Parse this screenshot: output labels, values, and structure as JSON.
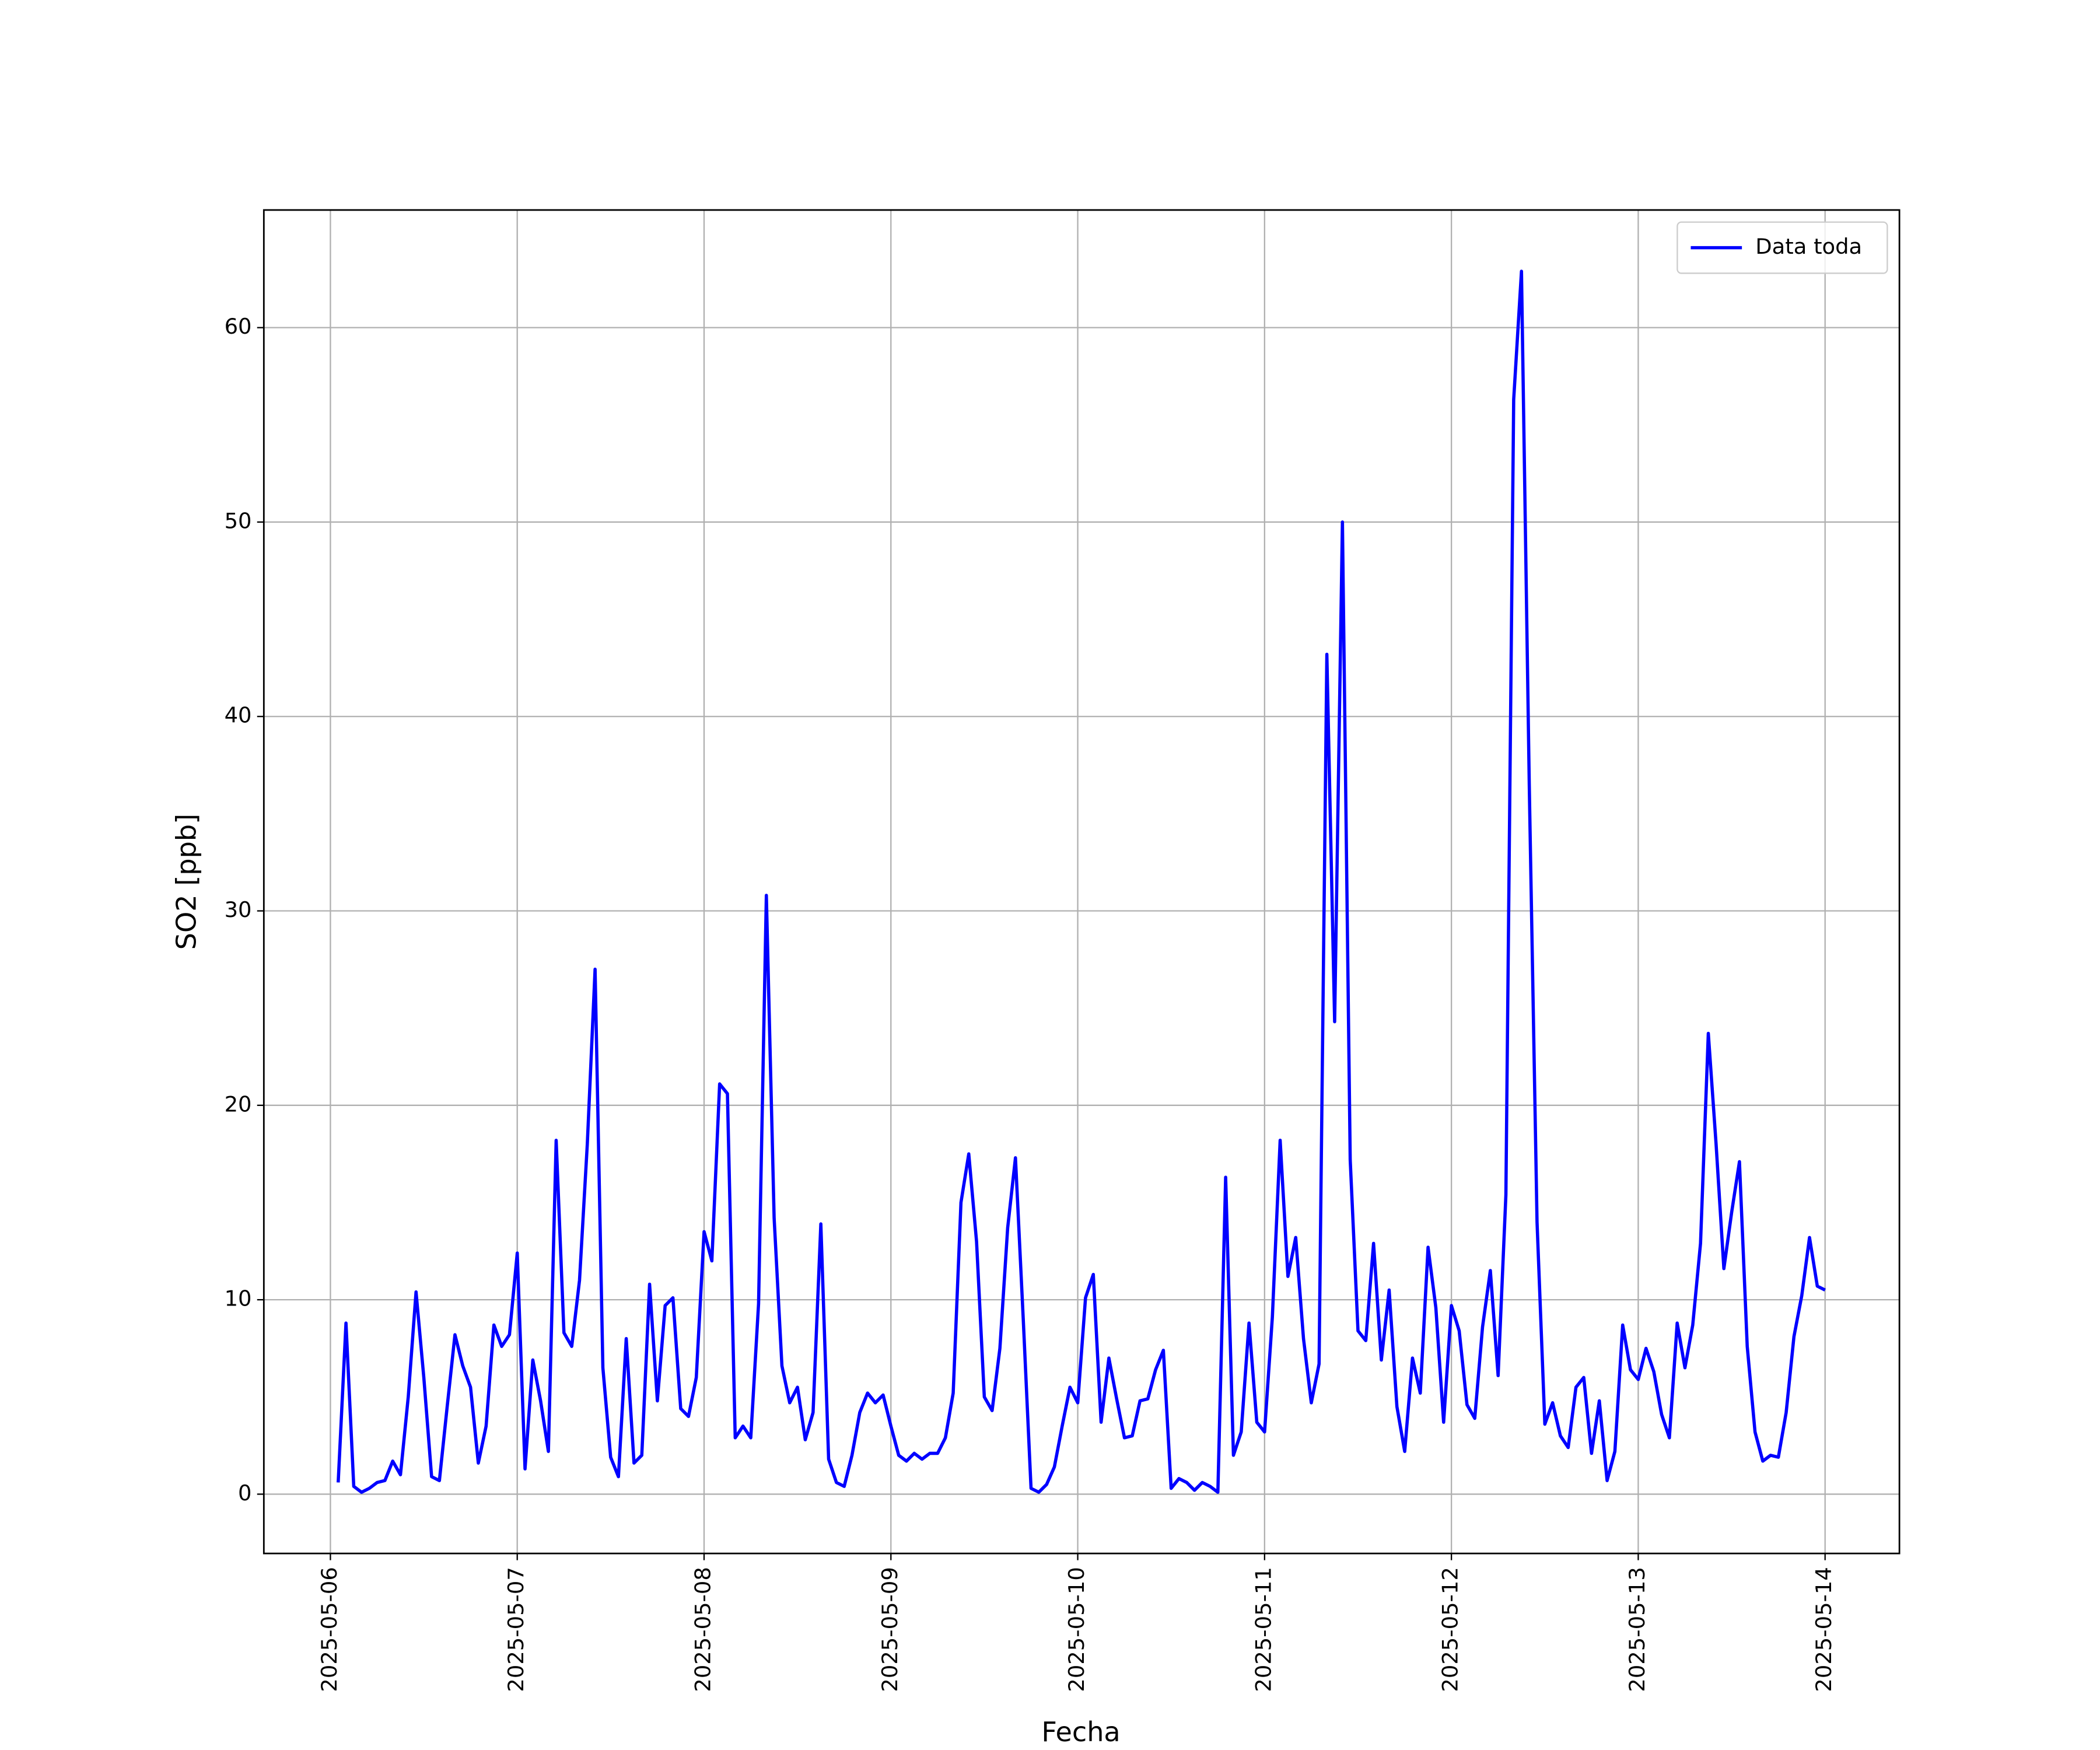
{
  "chart_data": {
    "type": "line",
    "xlabel": "Fecha",
    "ylabel": "SO2 [ppb]",
    "xlim": [
      "2025-05-05 15:27",
      "2025-05-14 09:33"
    ],
    "xticks": [
      "2025-05-06",
      "2025-05-07",
      "2025-05-08",
      "2025-05-09",
      "2025-05-10",
      "2025-05-11",
      "2025-05-12",
      "2025-05-13",
      "2025-05-14"
    ],
    "ylim": [
      -3.05,
      66.05
    ],
    "yticks": [
      0,
      10,
      20,
      30,
      40,
      50,
      60
    ],
    "grid": true,
    "legend": "upper right",
    "x": [
      "2025-05-06 01:00",
      "2025-05-06 02:00",
      "2025-05-06 03:00",
      "2025-05-06 04:00",
      "2025-05-06 05:00",
      "2025-05-06 06:00",
      "2025-05-06 07:00",
      "2025-05-06 08:00",
      "2025-05-06 09:00",
      "2025-05-06 10:00",
      "2025-05-06 11:00",
      "2025-05-06 12:00",
      "2025-05-06 13:00",
      "2025-05-06 14:00",
      "2025-05-06 15:00",
      "2025-05-06 16:00",
      "2025-05-06 17:00",
      "2025-05-06 18:00",
      "2025-05-06 19:00",
      "2025-05-06 20:00",
      "2025-05-06 21:00",
      "2025-05-06 22:00",
      "2025-05-06 23:00",
      "2025-05-07 00:00",
      "2025-05-07 01:00",
      "2025-05-07 02:00",
      "2025-05-07 03:00",
      "2025-05-07 04:00",
      "2025-05-07 05:00",
      "2025-05-07 06:00",
      "2025-05-07 07:00",
      "2025-05-07 08:00",
      "2025-05-07 09:00",
      "2025-05-07 10:00",
      "2025-05-07 11:00",
      "2025-05-07 12:00",
      "2025-05-07 13:00",
      "2025-05-07 14:00",
      "2025-05-07 15:00",
      "2025-05-07 16:00",
      "2025-05-07 17:00",
      "2025-05-07 18:00",
      "2025-05-07 19:00",
      "2025-05-07 20:00",
      "2025-05-07 21:00",
      "2025-05-07 22:00",
      "2025-05-07 23:00",
      "2025-05-08 00:00",
      "2025-05-08 01:00",
      "2025-05-08 02:00",
      "2025-05-08 03:00",
      "2025-05-08 04:00",
      "2025-05-08 05:00",
      "2025-05-08 06:00",
      "2025-05-08 07:00",
      "2025-05-08 08:00",
      "2025-05-08 09:00",
      "2025-05-08 10:00",
      "2025-05-08 11:00",
      "2025-05-08 12:00",
      "2025-05-08 13:00",
      "2025-05-08 14:00",
      "2025-05-08 15:00",
      "2025-05-08 16:00",
      "2025-05-08 17:00",
      "2025-05-08 18:00",
      "2025-05-08 19:00",
      "2025-05-08 20:00",
      "2025-05-08 21:00",
      "2025-05-08 22:00",
      "2025-05-08 23:00",
      "2025-05-09 00:00",
      "2025-05-09 01:00",
      "2025-05-09 02:00",
      "2025-05-09 03:00",
      "2025-05-09 04:00",
      "2025-05-09 05:00",
      "2025-05-09 06:00",
      "2025-05-09 07:00",
      "2025-05-09 08:00",
      "2025-05-09 09:00",
      "2025-05-09 10:00",
      "2025-05-09 11:00",
      "2025-05-09 12:00",
      "2025-05-09 13:00",
      "2025-05-09 14:00",
      "2025-05-09 15:00",
      "2025-05-09 16:00",
      "2025-05-09 17:00",
      "2025-05-09 18:00",
      "2025-05-09 19:00",
      "2025-05-09 20:00",
      "2025-05-09 21:00",
      "2025-05-09 22:00",
      "2025-05-09 23:00",
      "2025-05-10 00:00",
      "2025-05-10 01:00",
      "2025-05-10 02:00",
      "2025-05-10 03:00",
      "2025-05-10 04:00",
      "2025-05-10 05:00",
      "2025-05-10 06:00",
      "2025-05-10 07:00",
      "2025-05-10 08:00",
      "2025-05-10 09:00",
      "2025-05-10 10:00",
      "2025-05-10 11:00",
      "2025-05-10 12:00",
      "2025-05-10 13:00",
      "2025-05-10 14:00",
      "2025-05-10 15:00",
      "2025-05-10 16:00",
      "2025-05-10 17:00",
      "2025-05-10 18:00",
      "2025-05-10 19:00",
      "2025-05-10 20:00",
      "2025-05-10 21:00",
      "2025-05-10 22:00",
      "2025-05-10 23:00",
      "2025-05-11 00:00",
      "2025-05-11 01:00",
      "2025-05-11 02:00",
      "2025-05-11 03:00",
      "2025-05-11 04:00",
      "2025-05-11 05:00",
      "2025-05-11 06:00",
      "2025-05-11 07:00",
      "2025-05-11 08:00",
      "2025-05-11 09:00",
      "2025-05-11 10:00",
      "2025-05-11 11:00",
      "2025-05-11 12:00",
      "2025-05-11 13:00",
      "2025-05-11 14:00",
      "2025-05-11 15:00",
      "2025-05-11 16:00",
      "2025-05-11 17:00",
      "2025-05-11 18:00",
      "2025-05-11 19:00",
      "2025-05-11 20:00",
      "2025-05-11 21:00",
      "2025-05-11 22:00",
      "2025-05-11 23:00",
      "2025-05-12 00:00",
      "2025-05-12 01:00",
      "2025-05-12 02:00",
      "2025-05-12 03:00",
      "2025-05-12 04:00",
      "2025-05-12 05:00",
      "2025-05-12 06:00",
      "2025-05-12 07:00",
      "2025-05-12 08:00",
      "2025-05-12 09:00",
      "2025-05-12 10:00",
      "2025-05-12 11:00",
      "2025-05-12 12:00",
      "2025-05-12 13:00",
      "2025-05-12 14:00",
      "2025-05-12 15:00",
      "2025-05-12 16:00",
      "2025-05-12 17:00",
      "2025-05-12 18:00",
      "2025-05-12 19:00",
      "2025-05-12 20:00",
      "2025-05-12 21:00",
      "2025-05-12 22:00",
      "2025-05-12 23:00",
      "2025-05-13 00:00",
      "2025-05-13 01:00",
      "2025-05-13 02:00",
      "2025-05-13 03:00",
      "2025-05-13 04:00",
      "2025-05-13 05:00",
      "2025-05-13 06:00",
      "2025-05-13 07:00",
      "2025-05-13 08:00",
      "2025-05-13 09:00",
      "2025-05-13 10:00",
      "2025-05-13 11:00",
      "2025-05-13 12:00",
      "2025-05-13 13:00",
      "2025-05-13 14:00",
      "2025-05-13 15:00",
      "2025-05-13 16:00",
      "2025-05-13 17:00",
      "2025-05-13 18:00",
      "2025-05-13 19:00",
      "2025-05-13 20:00",
      "2025-05-13 21:00",
      "2025-05-13 22:00",
      "2025-05-13 23:00",
      "2025-05-14 00:00"
    ],
    "series": [
      {
        "name": "Data toda",
        "color": "#0000ff",
        "values": [
          0.6,
          8.8,
          0.4,
          0.1,
          0.3,
          0.6,
          0.7,
          1.7,
          1.0,
          5.0,
          10.4,
          6.0,
          0.9,
          0.7,
          4.5,
          8.2,
          6.6,
          5.5,
          1.6,
          3.5,
          8.7,
          7.6,
          8.2,
          12.4,
          1.3,
          6.9,
          4.8,
          2.2,
          18.2,
          8.3,
          7.6,
          11.0,
          18.0,
          27.0,
          6.5,
          1.9,
          0.9,
          8.0,
          1.6,
          2.0,
          10.8,
          4.8,
          9.7,
          10.1,
          4.4,
          4.0,
          6.0,
          13.5,
          12.0,
          21.1,
          20.6,
          2.9,
          3.5,
          2.9,
          9.8,
          30.8,
          14.2,
          6.6,
          4.7,
          5.5,
          2.8,
          4.2,
          13.9,
          1.8,
          0.6,
          0.4,
          2.0,
          4.2,
          5.2,
          4.7,
          5.1,
          3.5,
          2.0,
          1.7,
          2.1,
          1.8,
          2.1,
          2.1,
          2.9,
          5.2,
          15.0,
          17.5,
          13.0,
          5.0,
          4.3,
          7.5,
          13.7,
          17.3,
          9.0,
          0.3,
          0.1,
          0.5,
          1.4,
          3.5,
          5.5,
          4.7,
          10.1,
          11.3,
          3.7,
          7.0,
          4.9,
          2.9,
          3.0,
          4.8,
          4.9,
          6.4,
          7.4,
          0.3,
          0.8,
          0.6,
          0.2,
          0.6,
          0.4,
          0.1,
          16.3,
          2.0,
          3.2,
          8.8,
          3.7,
          3.2,
          9.1,
          18.2,
          11.2,
          13.2,
          8.0,
          4.7,
          6.7,
          43.2,
          24.3,
          50.0,
          17.2,
          8.4,
          7.9,
          12.9,
          6.9,
          10.5,
          4.5,
          2.2,
          7.0,
          5.2,
          12.7,
          9.6,
          3.7,
          9.7,
          8.4,
          4.6,
          3.9,
          8.6,
          11.5,
          6.1,
          15.4,
          56.3,
          62.9,
          36.5,
          14.0,
          3.6,
          4.7,
          3.0,
          2.4,
          5.5,
          6.0,
          2.1,
          4.8,
          0.7,
          2.2,
          8.7,
          6.4,
          5.9,
          7.5,
          6.3,
          4.1,
          2.9,
          8.8,
          6.5,
          8.7,
          12.9,
          23.7,
          18.0,
          11.6,
          14.5,
          17.1,
          7.6,
          3.2,
          1.7,
          2.0,
          1.9,
          4.2,
          8.1,
          10.2,
          13.2,
          10.7,
          10.5
        ]
      }
    ]
  }
}
